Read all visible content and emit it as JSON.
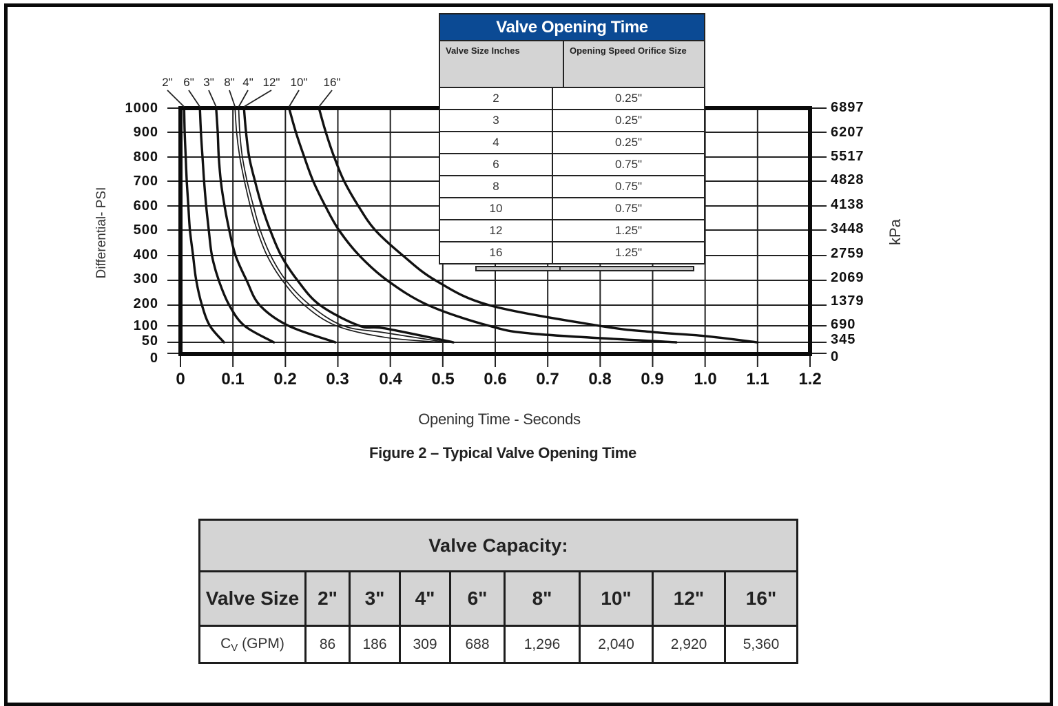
{
  "theme": {
    "title_bar_bg": "#0b4a94",
    "header_bg": "#d4d4d4",
    "line_color": "#111111"
  },
  "chart_data": {
    "type": "line",
    "title": "Figure 2 – Typical Valve Opening Time",
    "xlabel": "Opening Time - Seconds",
    "ylabel": "Differential- PSI",
    "ylabel_right": "kPa",
    "xlim": [
      0,
      1.2
    ],
    "ylim": [
      0,
      1000
    ],
    "grid": true,
    "legend_position": "inline labels above plot with leader lines",
    "xticks": [
      "0",
      "0.1",
      "0.2",
      "0.3",
      "0.4",
      "0.5",
      "0.6",
      "0.7",
      "0.8",
      "0.9",
      "1.0",
      "1.1",
      "1.2"
    ],
    "yticks": [
      "1000",
      "900",
      "800",
      "700",
      "600",
      "500",
      "400",
      "300",
      "200",
      "100",
      "50",
      "0"
    ],
    "yticks_right": [
      "6897",
      "6207",
      "5517",
      "4828",
      "4138",
      "3448",
      "2759",
      "2069",
      "1379",
      "690",
      "345",
      "0"
    ],
    "series": [
      {
        "name": "2\"",
        "line": "thick",
        "points": [
          [
            0.007,
            1000
          ],
          [
            0.008,
            900
          ],
          [
            0.01,
            800
          ],
          [
            0.012,
            700
          ],
          [
            0.015,
            600
          ],
          [
            0.018,
            500
          ],
          [
            0.024,
            400
          ],
          [
            0.03,
            300
          ],
          [
            0.041,
            200
          ],
          [
            0.056,
            100
          ],
          [
            0.083,
            50
          ]
        ]
      },
      {
        "name": "6\"",
        "line": "thick",
        "points": [
          [
            0.037,
            1000
          ],
          [
            0.039,
            900
          ],
          [
            0.042,
            800
          ],
          [
            0.045,
            700
          ],
          [
            0.049,
            600
          ],
          [
            0.054,
            500
          ],
          [
            0.06,
            400
          ],
          [
            0.073,
            300
          ],
          [
            0.093,
            200
          ],
          [
            0.122,
            100
          ],
          [
            0.178,
            50
          ]
        ]
      },
      {
        "name": "3\"",
        "line": "thick",
        "points": [
          [
            0.068,
            1000
          ],
          [
            0.071,
            900
          ],
          [
            0.073,
            800
          ],
          [
            0.077,
            700
          ],
          [
            0.084,
            600
          ],
          [
            0.093,
            500
          ],
          [
            0.105,
            400
          ],
          [
            0.126,
            300
          ],
          [
            0.151,
            200
          ],
          [
            0.206,
            100
          ],
          [
            0.295,
            50
          ]
        ]
      },
      {
        "name": "8\"",
        "line": "thin",
        "points": [
          [
            0.104,
            1000
          ],
          [
            0.107,
            900
          ],
          [
            0.113,
            800
          ],
          [
            0.122,
            700
          ],
          [
            0.133,
            600
          ],
          [
            0.146,
            500
          ],
          [
            0.165,
            400
          ],
          [
            0.194,
            300
          ],
          [
            0.236,
            200
          ],
          [
            0.297,
            100
          ],
          [
            0.39,
            65
          ],
          [
            0.496,
            50
          ]
        ]
      },
      {
        "name": "4\"",
        "line": "thin",
        "points": [
          [
            0.111,
            1000
          ],
          [
            0.113,
            900
          ],
          [
            0.118,
            800
          ],
          [
            0.127,
            700
          ],
          [
            0.139,
            600
          ],
          [
            0.152,
            500
          ],
          [
            0.172,
            400
          ],
          [
            0.201,
            300
          ],
          [
            0.247,
            200
          ],
          [
            0.31,
            100
          ],
          [
            0.39,
            79
          ],
          [
            0.507,
            50
          ]
        ]
      },
      {
        "name": "12\"",
        "line": "thick",
        "points": [
          [
            0.121,
            1000
          ],
          [
            0.125,
            900
          ],
          [
            0.131,
            800
          ],
          [
            0.142,
            700
          ],
          [
            0.155,
            600
          ],
          [
            0.171,
            500
          ],
          [
            0.192,
            400
          ],
          [
            0.223,
            300
          ],
          [
            0.266,
            200
          ],
          [
            0.341,
            100
          ],
          [
            0.39,
            92
          ],
          [
            0.52,
            50
          ]
        ]
      },
      {
        "name": "10\"",
        "line": "thick",
        "points": [
          [
            0.207,
            1000
          ],
          [
            0.22,
            900
          ],
          [
            0.236,
            800
          ],
          [
            0.253,
            700
          ],
          [
            0.276,
            600
          ],
          [
            0.302,
            500
          ],
          [
            0.341,
            400
          ],
          [
            0.394,
            300
          ],
          [
            0.472,
            200
          ],
          [
            0.588,
            100
          ],
          [
            0.68,
            75
          ],
          [
            0.945,
            50
          ]
        ]
      },
      {
        "name": "16\"",
        "line": "thick",
        "points": [
          [
            0.264,
            1000
          ],
          [
            0.277,
            900
          ],
          [
            0.293,
            800
          ],
          [
            0.312,
            700
          ],
          [
            0.339,
            600
          ],
          [
            0.371,
            500
          ],
          [
            0.424,
            400
          ],
          [
            0.486,
            300
          ],
          [
            0.588,
            200
          ],
          [
            0.798,
            100
          ],
          [
            0.9,
            81
          ],
          [
            1.0,
            69
          ],
          [
            1.1,
            50
          ]
        ]
      }
    ]
  },
  "opening_time_table": {
    "title": "Valve Opening Time",
    "headers": [
      "Valve Size Inches",
      "Opening Speed Orifice Size"
    ],
    "rows": [
      [
        "2",
        "0.25\""
      ],
      [
        "3",
        "0.25\""
      ],
      [
        "4",
        "0.25\""
      ],
      [
        "6",
        "0.75\""
      ],
      [
        "8",
        "0.75\""
      ],
      [
        "10",
        "0.75\""
      ],
      [
        "12",
        "1.25\""
      ],
      [
        "16",
        "1.25\""
      ]
    ]
  },
  "capacity_table": {
    "title": "Valve Capacity:",
    "header_label": "Valve Size",
    "sizes": [
      "2\"",
      "3\"",
      "4\"",
      "6\"",
      "8\"",
      "10\"",
      "12\"",
      "16\""
    ],
    "row_label": "C",
    "row_label_subscript": "V",
    "row_label_unit": "(GPM)",
    "values": [
      "86",
      "186",
      "309",
      "688",
      "1,296",
      "2,040",
      "2,920",
      "5,360"
    ]
  }
}
